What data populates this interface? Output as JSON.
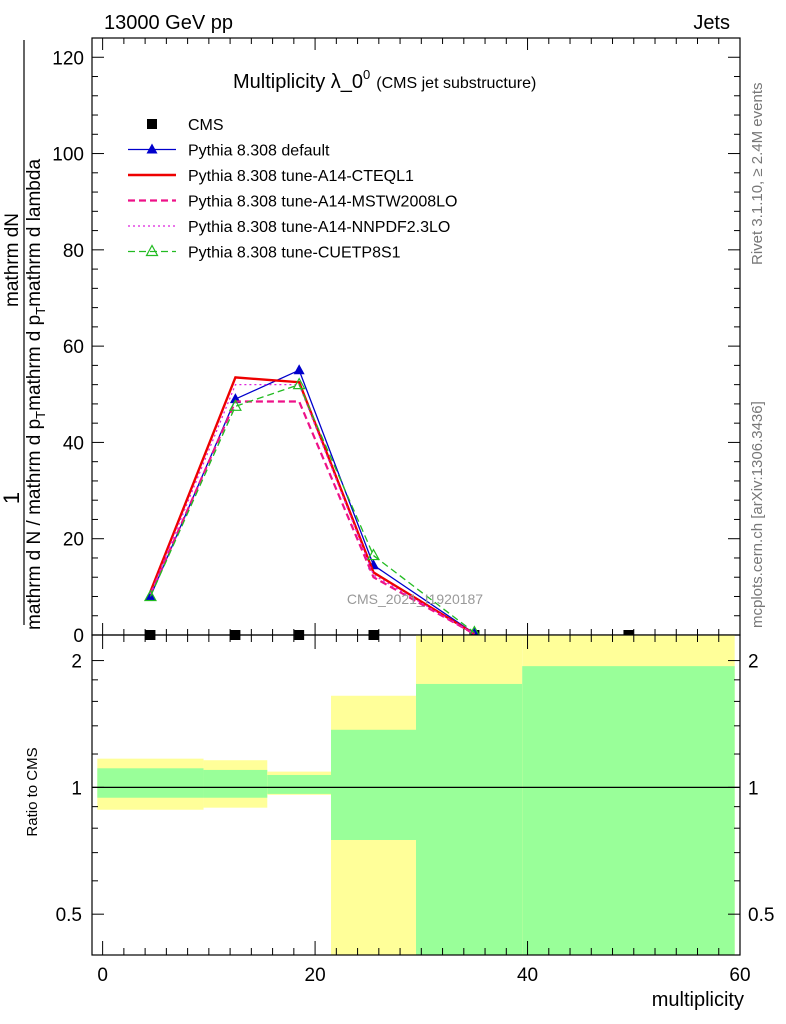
{
  "header": {
    "left": "13000 GeV pp",
    "right": "Jets"
  },
  "side_labels": {
    "rivet": "Rivet 3.1.10, ≥ 2.4M events",
    "mcplots": "mcplots.cern.ch [arXiv:1306.3436]"
  },
  "watermark": "CMS_2021_I1920187",
  "chart_data": [
    {
      "type": "line",
      "title_main": "Multiplicity λ_0",
      "title_sup": "0",
      "title_sub": "(CMS jet substructure)",
      "ylabel_numerator": "1",
      "ylabel_fraction_top": "mathrm d",
      "ylabel_N_top": "N",
      "ylabel_denominator": "mathrm d N / mathrm d p",
      "ylabel_T": "T",
      "ylabel_middle": "mathrm d p",
      "ylabel_T2": "T",
      "ylabel_tail": "mathrm d lambda",
      "xlim": [
        -1,
        60
      ],
      "ylim": [
        0,
        124
      ],
      "yticks": [
        0,
        20,
        40,
        60,
        80,
        100,
        120
      ],
      "ytick_labels": [
        "0",
        "20",
        "40",
        "60",
        "80",
        "100",
        "120"
      ],
      "legend_position": "top-left",
      "series": [
        {
          "name": "CMS",
          "style": "marker-square",
          "color": "#000000",
          "x": [
            4.5,
            12.5,
            18.5,
            25.5,
            35,
            49.5
          ],
          "y": [
            0,
            0,
            0,
            0,
            0,
            0
          ],
          "xerr": [
            4.5,
            3.5,
            2.5,
            4.5,
            5,
            9.5
          ]
        },
        {
          "name": "Pythia 8.308 default",
          "style": "solid-triangle",
          "color": "#0000cc",
          "x": [
            4.5,
            12.5,
            18.5,
            25.5,
            35
          ],
          "y": [
            8,
            49,
            55,
            14.5,
            0.3
          ]
        },
        {
          "name": "Pythia 8.308 tune-A14-CTEQL1",
          "style": "solid-thick",
          "color": "#ee0000",
          "x": [
            4.5,
            12.5,
            18.5,
            25.5,
            35
          ],
          "y": [
            9,
            53.5,
            52.5,
            13,
            0.2
          ]
        },
        {
          "name": "Pythia 8.308 tune-A14-MSTW2008LO",
          "style": "dashed",
          "color": "#ee1188",
          "x": [
            4.5,
            12.5,
            18.5,
            25.5,
            35
          ],
          "y": [
            8.5,
            48.5,
            48.5,
            12,
            0.2
          ]
        },
        {
          "name": "Pythia 8.308 tune-A14-NNPDF2.3LO",
          "style": "dotted",
          "color": "#dd22dd",
          "x": [
            4.5,
            12.5,
            18.5,
            25.5,
            35
          ],
          "y": [
            8.5,
            52,
            52,
            12.5,
            0.2
          ]
        },
        {
          "name": "Pythia 8.308 tune-CUETP8S1",
          "style": "dashed-open-triangle",
          "color": "#22bb22",
          "x": [
            4.5,
            12.5,
            18.5,
            25.5,
            35
          ],
          "y": [
            8,
            47.5,
            52,
            16.5,
            0.5
          ]
        }
      ]
    },
    {
      "type": "area",
      "ylabel": "Ratio to CMS",
      "xlabel": "multiplicity",
      "xlim": [
        -1,
        60
      ],
      "ylim": [
        0.4,
        2.3
      ],
      "scale": "log",
      "xticks": [
        0,
        20,
        40,
        60
      ],
      "xtick_labels": [
        "0",
        "20",
        "40",
        "60"
      ],
      "yticks": [
        0.5,
        1,
        2
      ],
      "ytick_labels": [
        "0.5",
        "1",
        "2"
      ],
      "reference": 1,
      "bins": [
        {
          "xlo": -0.5,
          "xhi": 9.5,
          "stat_lo": 0.945,
          "stat_hi": 1.11,
          "tot_lo": 0.885,
          "tot_hi": 1.17
        },
        {
          "xlo": 9.5,
          "xhi": 15.5,
          "stat_lo": 0.945,
          "stat_hi": 1.1,
          "tot_lo": 0.895,
          "tot_hi": 1.16
        },
        {
          "xlo": 15.5,
          "xhi": 21.5,
          "stat_lo": 0.965,
          "stat_hi": 1.07,
          "tot_lo": 0.96,
          "tot_hi": 1.09
        },
        {
          "xlo": 21.5,
          "xhi": 29.5,
          "stat_lo": 0.75,
          "stat_hi": 1.37,
          "tot_lo": 0.4,
          "tot_hi": 1.65
        },
        {
          "xlo": 29.5,
          "xhi": 39.5,
          "stat_lo": 0.4,
          "stat_hi": 1.76,
          "tot_lo": 0.4,
          "tot_hi": 2.3
        },
        {
          "xlo": 39.5,
          "xhi": 59.5,
          "stat_lo": 0.4,
          "stat_hi": 1.94,
          "tot_lo": 0.4,
          "tot_hi": 2.3
        }
      ],
      "band_colors": {
        "stat": "#99ff99",
        "total": "#ffff99"
      }
    }
  ]
}
